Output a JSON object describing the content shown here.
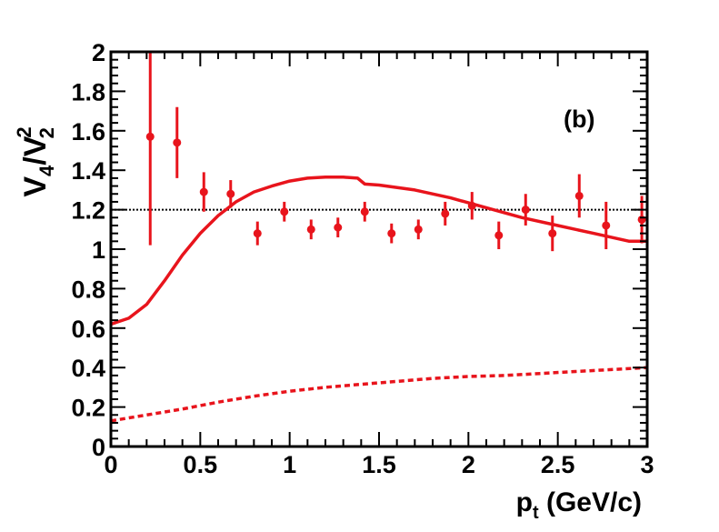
{
  "chart_data": {
    "type": "scatter",
    "panel_label": "(b)",
    "xlabel": {
      "main": "p",
      "sub": "t",
      "unit": " (GeV/c)"
    },
    "ylabel": {
      "v1": "V",
      "sub1": "4",
      "slash": "/",
      "v2": "V",
      "sub2": "2",
      "sup2": "2"
    },
    "xlim": [
      0,
      3
    ],
    "ylim": [
      0,
      2
    ],
    "x_ticks": [
      0,
      0.5,
      1,
      1.5,
      2,
      2.5,
      3
    ],
    "x_tick_labels": [
      "0",
      "0.5",
      "1",
      "1.5",
      "2",
      "2.5",
      "3"
    ],
    "y_ticks": [
      0,
      0.2,
      0.4,
      0.6,
      0.8,
      1,
      1.2,
      1.4,
      1.6,
      1.8,
      2
    ],
    "y_tick_labels": [
      "0",
      "0.2",
      "0.4",
      "0.6",
      "0.8",
      "1",
      "1.2",
      "1.4",
      "1.6",
      "1.8",
      "2"
    ],
    "reference_line": {
      "y": 1.2,
      "style": "dotted",
      "color": "#000000"
    },
    "series": [
      {
        "name": "data",
        "kind": "points",
        "color": "#e8141c",
        "points": [
          {
            "x": 0.22,
            "y": 1.57,
            "err": 0.55
          },
          {
            "x": 0.37,
            "y": 1.54,
            "err": 0.18
          },
          {
            "x": 0.52,
            "y": 1.29,
            "err": 0.1
          },
          {
            "x": 0.67,
            "y": 1.28,
            "err": 0.07
          },
          {
            "x": 0.82,
            "y": 1.08,
            "err": 0.06
          },
          {
            "x": 0.97,
            "y": 1.19,
            "err": 0.05
          },
          {
            "x": 1.12,
            "y": 1.1,
            "err": 0.05
          },
          {
            "x": 1.27,
            "y": 1.11,
            "err": 0.05
          },
          {
            "x": 1.42,
            "y": 1.19,
            "err": 0.05
          },
          {
            "x": 1.57,
            "y": 1.08,
            "err": 0.05
          },
          {
            "x": 1.72,
            "y": 1.1,
            "err": 0.05
          },
          {
            "x": 1.87,
            "y": 1.18,
            "err": 0.06
          },
          {
            "x": 2.02,
            "y": 1.22,
            "err": 0.07
          },
          {
            "x": 2.17,
            "y": 1.07,
            "err": 0.07
          },
          {
            "x": 2.32,
            "y": 1.2,
            "err": 0.08
          },
          {
            "x": 2.47,
            "y": 1.08,
            "err": 0.09
          },
          {
            "x": 2.62,
            "y": 1.27,
            "err": 0.11
          },
          {
            "x": 2.77,
            "y": 1.12,
            "err": 0.12
          },
          {
            "x": 2.97,
            "y": 1.15,
            "err": 0.12
          }
        ]
      },
      {
        "name": "model-solid",
        "kind": "line",
        "style": "solid",
        "color": "#e8141c",
        "x": [
          0,
          0.1,
          0.2,
          0.3,
          0.4,
          0.5,
          0.6,
          0.7,
          0.8,
          0.9,
          1.0,
          1.1,
          1.2,
          1.3,
          1.38,
          1.42,
          1.5,
          1.7,
          1.9,
          2.1,
          2.3,
          2.5,
          2.7,
          2.9,
          3.0
        ],
        "y": [
          0.62,
          0.65,
          0.72,
          0.84,
          0.97,
          1.08,
          1.17,
          1.24,
          1.29,
          1.32,
          1.345,
          1.36,
          1.365,
          1.365,
          1.36,
          1.33,
          1.325,
          1.3,
          1.26,
          1.21,
          1.16,
          1.12,
          1.08,
          1.04,
          1.04
        ]
      },
      {
        "name": "model-dashed",
        "kind": "line",
        "style": "dashed",
        "color": "#e8141c",
        "x": [
          0,
          0.2,
          0.4,
          0.6,
          0.8,
          1.0,
          1.2,
          1.4,
          1.6,
          1.8,
          2.0,
          2.2,
          2.4,
          2.6,
          2.8,
          3.0
        ],
        "y": [
          0.13,
          0.16,
          0.19,
          0.225,
          0.255,
          0.28,
          0.3,
          0.315,
          0.33,
          0.345,
          0.355,
          0.36,
          0.37,
          0.38,
          0.39,
          0.4
        ]
      }
    ]
  }
}
